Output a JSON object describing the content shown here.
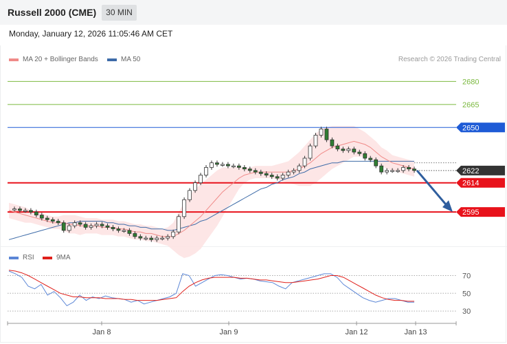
{
  "header": {
    "title": "Russell 2000 (CME)",
    "timeframe": "30 MIN",
    "datetime": "Monday, January 12, 2026 11:05:46 AM CET"
  },
  "legend": {
    "ma20_label": "MA 20 + Bollinger Bands",
    "ma50_label": "MA 50",
    "credit": "Research © 2026 Trading Central",
    "rsi_label": "RSI",
    "rsi_ma_label": "9MA"
  },
  "colors": {
    "ma20": "#f08a88",
    "ma50": "#3d6ba8",
    "bollinger_fill": "#fde3e3",
    "resistance": "#7bb93f",
    "pivot": "#1e5bd6",
    "support": "#e8121b",
    "current": "#333333",
    "candle": "#2f7d32",
    "rsi": "#5b86d6",
    "rsi_ma": "#e0201b"
  },
  "chart_data": [
    {
      "type": "candlestick",
      "title": "Russell 2000 (CME)",
      "x_ticks": [
        "Jan 8",
        "Jan 9",
        "Jan 12",
        "Jan 13"
      ],
      "ylim": [
        2574,
        2690
      ],
      "levels": [
        {
          "value": 2680,
          "label": "2680",
          "kind": "resistance"
        },
        {
          "value": 2665,
          "label": "2665",
          "kind": "resistance"
        },
        {
          "value": 2650,
          "label": "2650",
          "kind": "pivot"
        },
        {
          "value": 2622,
          "label": "2622",
          "kind": "current"
        },
        {
          "value": 2614,
          "label": "2614",
          "kind": "support"
        },
        {
          "value": 2595,
          "label": "2595",
          "kind": "support"
        }
      ],
      "price_path": [
        2597,
        2597,
        2596,
        2596,
        2595,
        2593,
        2591,
        2590,
        2589,
        2588,
        2583,
        2586,
        2588,
        2587,
        2585,
        2586,
        2587,
        2586,
        2585,
        2584,
        2583,
        2583,
        2581,
        2579,
        2578,
        2578,
        2577,
        2578,
        2578,
        2579,
        2582,
        2592,
        2603,
        2609,
        2614,
        2619,
        2624,
        2627,
        2626,
        2626,
        2625,
        2625,
        2624,
        2623,
        2622,
        2621,
        2620,
        2619,
        2618,
        2617,
        2619,
        2621,
        2622,
        2625,
        2630,
        2638,
        2645,
        2649,
        2642,
        2638,
        2636,
        2635,
        2636,
        2634,
        2633,
        2630,
        2629,
        2625,
        2621,
        2622,
        2622,
        2622,
        2624,
        2623,
        2622
      ],
      "ma20": [
        2596,
        2595,
        2594,
        2593,
        2592,
        2591,
        2590,
        2589,
        2588,
        2588,
        2588,
        2587,
        2587,
        2586,
        2586,
        2586,
        2586,
        2585,
        2585,
        2585,
        2584,
        2584,
        2583,
        2582,
        2582,
        2581,
        2581,
        2580,
        2579,
        2579,
        2579,
        2581,
        2583,
        2586,
        2589,
        2592,
        2596,
        2600,
        2604,
        2608,
        2611,
        2614,
        2617,
        2619,
        2620,
        2621,
        2621,
        2621,
        2621,
        2621,
        2621,
        2621,
        2622,
        2623,
        2625,
        2627,
        2630,
        2633,
        2635,
        2637,
        2638,
        2639,
        2640,
        2641,
        2640,
        2639,
        2637,
        2634,
        2631,
        2629,
        2627,
        2626,
        2625,
        2624,
        2623
      ],
      "ma50": [
        2577,
        2578,
        2579,
        2580,
        2581,
        2582,
        2583,
        2584,
        2585,
        2586,
        2587,
        2588,
        2588,
        2589,
        2589,
        2589,
        2589,
        2589,
        2588,
        2588,
        2587,
        2587,
        2586,
        2586,
        2585,
        2585,
        2584,
        2584,
        2584,
        2583,
        2583,
        2584,
        2585,
        2586,
        2587,
        2589,
        2590,
        2592,
        2594,
        2596,
        2598,
        2600,
        2602,
        2604,
        2606,
        2608,
        2610,
        2611,
        2613,
        2614,
        2616,
        2617,
        2618,
        2620,
        2621,
        2623,
        2624,
        2625,
        2626,
        2627,
        2627,
        2628,
        2628,
        2628,
        2628,
        2628,
        2628,
        2628,
        2628,
        2628,
        2628,
        2628,
        2628,
        2628,
        2628
      ],
      "forecast": {
        "from": 2622,
        "to": 2595
      }
    },
    {
      "type": "line",
      "title": "RSI",
      "yticks": [
        70,
        50,
        30
      ],
      "ylim": [
        20,
        82
      ],
      "series": [
        {
          "name": "RSI",
          "values": [
            75,
            72,
            68,
            58,
            55,
            60,
            48,
            52,
            45,
            36,
            40,
            48,
            42,
            46,
            44,
            47,
            45,
            44,
            43,
            40,
            42,
            38,
            40,
            42,
            44,
            46,
            50,
            72,
            70,
            58,
            62,
            66,
            70,
            71,
            70,
            68,
            66,
            67,
            66,
            64,
            63,
            62,
            58,
            55,
            62,
            64,
            66,
            68,
            70,
            72,
            72,
            68,
            60,
            55,
            50,
            45,
            42,
            40,
            42,
            44,
            44,
            42,
            40,
            40
          ]
        },
        {
          "name": "9MA",
          "values": [
            76,
            75,
            73,
            70,
            66,
            62,
            58,
            54,
            50,
            48,
            46,
            46,
            45,
            45,
            45,
            44,
            44,
            44,
            43,
            43,
            42,
            42,
            42,
            42,
            43,
            44,
            45,
            52,
            58,
            62,
            65,
            67,
            68,
            68,
            68,
            68,
            67,
            67,
            66,
            65,
            65,
            64,
            63,
            62,
            62,
            63,
            64,
            65,
            66,
            68,
            70,
            70,
            68,
            64,
            60,
            56,
            52,
            48,
            45,
            43,
            42,
            42,
            41,
            41
          ]
        }
      ]
    }
  ]
}
